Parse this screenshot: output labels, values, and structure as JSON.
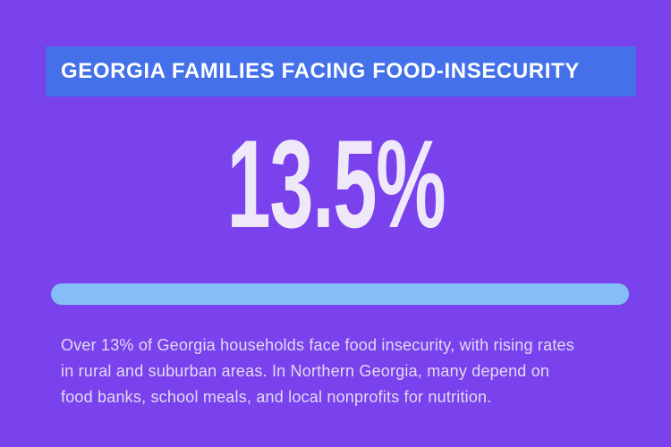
{
  "colors": {
    "background": "#7A42EC",
    "header_band": "#4471E9",
    "header_text": "#FFFFFF",
    "stat_text": "#EFE8F9",
    "bar_fill": "#85BDF6",
    "body_text": "#E2D9F4"
  },
  "header": {
    "title": "GEORGIA FAMILIES FACING FOOD-INSECURITY"
  },
  "stat": {
    "value": "13.5%"
  },
  "body": {
    "lines": [
      "Over 13% of Georgia households face food insecurity, with rising rates",
      "in rural and suburban areas. In Northern Georgia, many depend on",
      "food banks, school meals, and local nonprofits for nutrition."
    ]
  }
}
